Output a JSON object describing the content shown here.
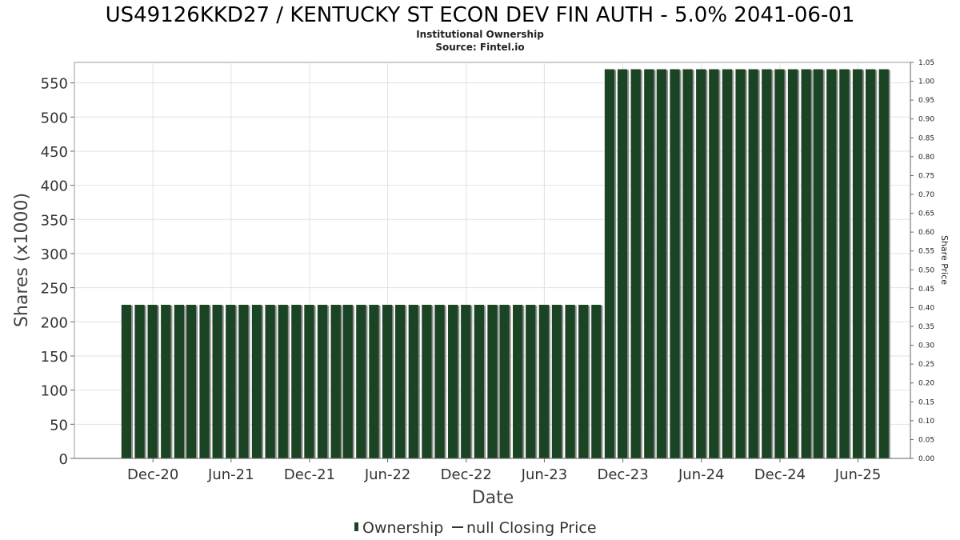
{
  "chart_data": {
    "type": "bar",
    "title": "US49126KKD27 / KENTUCKY ST ECON DEV FIN AUTH - 5.0% 2041-06-01",
    "subtitle_1": "Institutional Ownership",
    "subtitle_2": "Source: Fintel.io",
    "xlabel": "Date",
    "ylabel": "Shares (x1000)",
    "y2label": "Share Price",
    "ylim": [
      0,
      580
    ],
    "y2lim": [
      0,
      1.05
    ],
    "ytick_labels": [
      "0",
      "50",
      "100",
      "150",
      "200",
      "250",
      "300",
      "350",
      "400",
      "450",
      "500",
      "550"
    ],
    "y2tick_labels": [
      "0.00",
      "0.05",
      "0.10",
      "0.15",
      "0.20",
      "0.25",
      "0.30",
      "0.35",
      "0.40",
      "0.45",
      "0.50",
      "0.55",
      "0.60",
      "0.65",
      "0.70",
      "0.75",
      "0.80",
      "0.85",
      "0.90",
      "0.95",
      "1.00",
      "1.05"
    ],
    "xtick_labels": [
      "Dec-20",
      "Jun-21",
      "Dec-21",
      "Jun-22",
      "Dec-22",
      "Jun-23",
      "Dec-23",
      "Jun-24",
      "Dec-24",
      "Jun-25"
    ],
    "xlim": [
      "2020-06-01",
      "2025-10-01"
    ],
    "grid": true,
    "legend_placement": "bottom-center",
    "series": [
      {
        "name": "Ownership",
        "color": "#1b4424",
        "x": [
          "2020-09-30",
          "2020-10-31",
          "2020-11-30",
          "2020-12-31",
          "2021-01-31",
          "2021-02-28",
          "2021-03-31",
          "2021-04-30",
          "2021-05-31",
          "2021-06-30",
          "2021-07-31",
          "2021-08-31",
          "2021-09-30",
          "2021-10-31",
          "2021-11-30",
          "2021-12-31",
          "2022-01-31",
          "2022-02-28",
          "2022-03-31",
          "2022-04-30",
          "2022-05-31",
          "2022-06-30",
          "2022-07-31",
          "2022-08-31",
          "2022-09-30",
          "2022-10-31",
          "2022-11-30",
          "2022-12-31",
          "2023-01-31",
          "2023-02-28",
          "2023-03-31",
          "2023-04-30",
          "2023-05-31",
          "2023-06-30",
          "2023-07-31",
          "2023-08-31",
          "2023-09-30",
          "2023-10-31",
          "2023-11-30",
          "2023-12-31",
          "2024-01-31",
          "2024-02-29",
          "2024-03-31",
          "2024-04-30",
          "2024-05-31",
          "2024-06-30",
          "2024-07-31",
          "2024-08-31",
          "2024-09-30",
          "2024-10-31",
          "2024-11-30",
          "2024-12-31",
          "2025-01-31",
          "2025-02-28",
          "2025-03-31",
          "2025-04-30",
          "2025-05-31",
          "2025-06-30",
          "2025-07-31"
        ],
        "values": [
          225,
          225,
          225,
          225,
          225,
          225,
          225,
          225,
          225,
          225,
          225,
          225,
          225,
          225,
          225,
          225,
          225,
          225,
          225,
          225,
          225,
          225,
          225,
          225,
          225,
          225,
          225,
          225,
          225,
          225,
          225,
          225,
          225,
          225,
          225,
          225,
          225,
          570,
          570,
          570,
          570,
          570,
          570,
          570,
          570,
          570,
          570,
          570,
          570,
          570,
          570,
          570,
          570,
          570,
          570,
          570,
          570,
          570,
          570
        ]
      },
      {
        "name": "null Closing Price",
        "color": "#333333",
        "values": []
      }
    ]
  },
  "legend": {
    "ownership_label": "Ownership",
    "price_label": "null Closing Price"
  }
}
